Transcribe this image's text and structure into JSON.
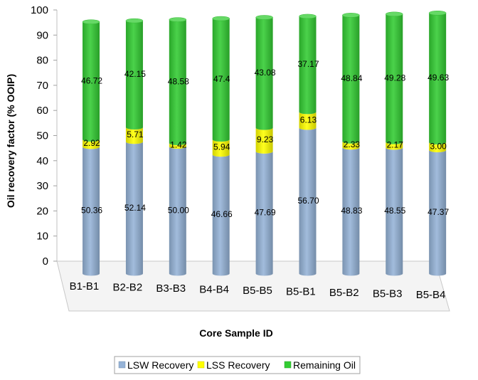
{
  "chart_data": {
    "type": "bar",
    "stacked": true,
    "style": "3d-cylinder",
    "categories": [
      "B1-B1",
      "B2-B2",
      "B3-B3",
      "B4-B4",
      "B5-B5",
      "B5-B1",
      "B5-B2",
      "B5-B3",
      "B5-B4"
    ],
    "series": [
      {
        "name": "LSW Recovery",
        "color": "#95b3d7",
        "values": [
          50.36,
          52.14,
          50.0,
          46.66,
          47.69,
          56.7,
          48.83,
          48.55,
          47.37
        ],
        "labels": [
          "50.36",
          "52.14",
          "50.00",
          "46.66",
          "47.69",
          "56.70",
          "48.83",
          "48.55",
          "47.37"
        ]
      },
      {
        "name": "LSS Recovery",
        "color": "#ffff00",
        "values": [
          2.92,
          5.71,
          1.42,
          5.94,
          9.23,
          6.13,
          2.33,
          2.17,
          3.0
        ],
        "labels": [
          "2.92",
          "5.71",
          "1.42",
          "5.94",
          "9.23",
          "6.13",
          "2.33",
          "2.17",
          "3.00"
        ]
      },
      {
        "name": "Remaining Oil",
        "color": "#33cc33",
        "values": [
          46.72,
          42.15,
          48.58,
          47.4,
          43.08,
          37.17,
          48.84,
          49.28,
          49.63
        ],
        "labels": [
          "46.72",
          "42.15",
          "48.58",
          "47.4",
          "43.08",
          "37.17",
          "48.84",
          "49.28",
          "49.63"
        ]
      }
    ],
    "xlabel": "Core Sample ID",
    "ylabel": "Oil recovery factor (% OOIP)",
    "ylim": [
      0,
      100
    ],
    "yticks": [
      "0",
      "10",
      "20",
      "30",
      "40",
      "50",
      "60",
      "70",
      "80",
      "90",
      "100"
    ],
    "grid": false,
    "legend": "bottom"
  }
}
